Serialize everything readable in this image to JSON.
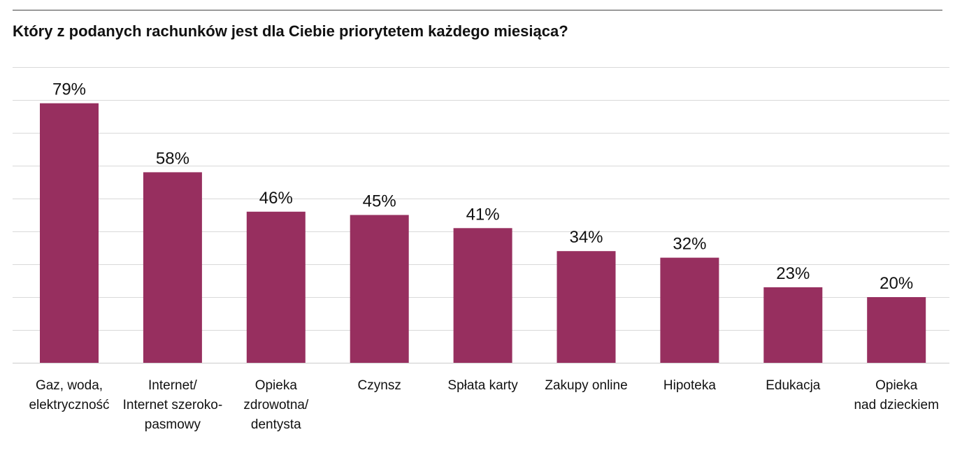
{
  "chart_data": {
    "type": "bar",
    "title": "Który z podanych rachunków jest dla Ciebie priorytetem każdego miesiąca?",
    "categories": [
      [
        "Gaz, woda,",
        "elektryczność"
      ],
      [
        "Internet/",
        "Internet szeroko-",
        "pasmowy"
      ],
      [
        "Opieka",
        "zdrowotna/",
        "dentysta"
      ],
      [
        "Czynsz"
      ],
      [
        "Spłata karty"
      ],
      [
        "Zakupy online"
      ],
      [
        "Hipoteka"
      ],
      [
        "Edukacja"
      ],
      [
        "Opieka",
        "nad dzieckiem"
      ]
    ],
    "values": [
      79,
      58,
      46,
      45,
      41,
      34,
      32,
      23,
      20
    ],
    "value_labels": [
      "79%",
      "58%",
      "46%",
      "45%",
      "41%",
      "34%",
      "32%",
      "23%",
      "20%"
    ],
    "unit": "%",
    "ylim": [
      0,
      90
    ],
    "grid": true,
    "xlabel": "",
    "ylabel": "",
    "bar_color": "#972f5f",
    "grid_color": "#d9d9d9"
  }
}
